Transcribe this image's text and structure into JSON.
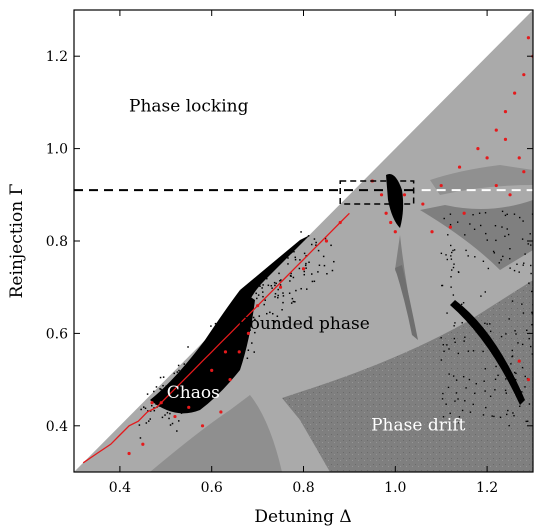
{
  "chart_data": {
    "type": "scatter",
    "title": "",
    "xlabel": "Detuning Δ",
    "ylabel": "Reinjection Γ",
    "xlim": [
      0.3,
      1.3
    ],
    "ylim": [
      0.3,
      1.3
    ],
    "xticks": [
      0.4,
      0.6,
      0.8,
      1.0,
      1.2
    ],
    "xtick_labels": [
      "0.4",
      "0.6",
      "0.8",
      "1.0",
      "1.2"
    ],
    "yticks": [
      0.4,
      0.6,
      0.8,
      1.0,
      1.2
    ],
    "ytick_labels": [
      "0.4",
      "0.6",
      "0.8",
      "1.0",
      "1.2"
    ],
    "grid": false,
    "regions": [
      {
        "name": "Phase locking",
        "label_at": [
          0.55,
          1.08
        ],
        "color": "#ffffff",
        "text_color": "#000000"
      },
      {
        "name": "Bounded phase",
        "label_at": [
          0.8,
          0.61
        ],
        "color": "#aaaaaa",
        "text_color": "#000000"
      },
      {
        "name": "Phase drift",
        "label_at": [
          1.05,
          0.39
        ],
        "color": "#7f7f7f",
        "text_color": "#ffffff"
      },
      {
        "name": "Chaos",
        "label_at": [
          0.56,
          0.46
        ],
        "color": "#000000",
        "text_color": "#ffffff"
      }
    ],
    "locking_boundary": {
      "x": [
        0.3,
        1.3
      ],
      "y": [
        0.3,
        1.3
      ]
    },
    "reference_line": {
      "y": 0.91,
      "style": "dashed"
    },
    "highlight_box": {
      "x": [
        0.88,
        1.04
      ],
      "y": [
        0.88,
        0.93
      ],
      "style": "dashed"
    },
    "series": [
      {
        "values": [
          [
            0.32,
            0.32
          ],
          [
            0.35,
            0.34
          ],
          [
            0.38,
            0.36
          ],
          [
            0.4,
            0.38
          ],
          [
            0.42,
            0.4
          ],
          [
            0.44,
            0.41
          ],
          [
            0.46,
            0.43
          ],
          [
            0.48,
            0.44
          ],
          [
            0.5,
            0.46
          ],
          [
            0.52,
            0.48
          ],
          [
            0.54,
            0.5
          ],
          [
            0.56,
            0.52
          ],
          [
            0.58,
            0.54
          ],
          [
            0.6,
            0.56
          ],
          [
            0.62,
            0.58
          ],
          [
            0.64,
            0.6
          ],
          [
            0.66,
            0.62
          ],
          [
            0.68,
            0.64
          ],
          [
            0.7,
            0.66
          ],
          [
            0.72,
            0.68
          ],
          [
            0.74,
            0.7
          ],
          [
            0.76,
            0.72
          ],
          [
            0.78,
            0.74
          ],
          [
            0.8,
            0.76
          ],
          [
            0.82,
            0.78
          ],
          [
            0.84,
            0.8
          ],
          [
            0.86,
            0.82
          ],
          [
            0.88,
            0.84
          ],
          [
            0.9,
            0.86
          ]
        ]
      },
      {
        "values": [
          [
            0.47,
            0.45
          ],
          [
            0.49,
            0.45
          ],
          [
            0.52,
            0.42
          ],
          [
            0.55,
            0.44
          ],
          [
            0.58,
            0.4
          ],
          [
            0.62,
            0.43
          ],
          [
            0.64,
            0.5
          ],
          [
            0.66,
            0.56
          ],
          [
            0.68,
            0.6
          ],
          [
            0.7,
            0.66
          ],
          [
            0.75,
            0.7
          ],
          [
            0.8,
            0.74
          ],
          [
            0.85,
            0.8
          ],
          [
            0.88,
            0.84
          ],
          [
            0.95,
            0.93
          ],
          [
            0.97,
            0.9
          ],
          [
            0.98,
            0.86
          ],
          [
            0.99,
            0.84
          ],
          [
            1.0,
            0.82
          ],
          [
            1.02,
            0.9
          ],
          [
            1.06,
            0.88
          ],
          [
            1.1,
            0.92
          ],
          [
            1.14,
            0.96
          ],
          [
            1.18,
            1.0
          ],
          [
            1.2,
            0.98
          ],
          [
            1.22,
            1.04
          ],
          [
            1.24,
            1.08
          ],
          [
            1.26,
            1.12
          ],
          [
            1.28,
            1.16
          ],
          [
            1.3,
            1.2
          ],
          [
            1.27,
            0.98
          ],
          [
            1.25,
            0.9
          ],
          [
            1.15,
            0.86
          ],
          [
            1.12,
            0.83
          ],
          [
            1.08,
            0.82
          ],
          [
            1.24,
            1.02
          ],
          [
            1.29,
            1.24
          ],
          [
            1.28,
            0.95
          ],
          [
            1.22,
            0.92
          ],
          [
            0.45,
            0.36
          ],
          [
            0.42,
            0.34
          ],
          [
            0.6,
            0.52
          ],
          [
            0.63,
            0.56
          ],
          [
            1.27,
            0.54
          ],
          [
            1.29,
            0.5
          ]
        ]
      }
    ]
  }
}
